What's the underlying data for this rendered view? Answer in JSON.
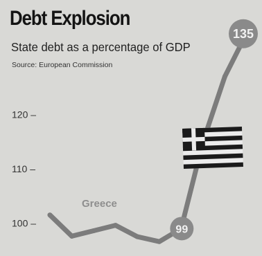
{
  "chart_data": {
    "type": "line",
    "title": "Debt Explosion",
    "subtitle": "State debt as a percentage of GDP",
    "source": "Source: European Commission",
    "xlabel": "",
    "ylabel": "",
    "yticks": [
      "100",
      "110",
      "120"
    ],
    "ylim": [
      96,
      140
    ],
    "series": [
      {
        "name": "Greece",
        "values": [
          101.5,
          97.6,
          98.6,
          99.6,
          97.5,
          96.6,
          99.0,
          115.0,
          127.0,
          135.0
        ]
      }
    ],
    "annotations": [
      {
        "label": "99",
        "value": 99
      },
      {
        "label": "135",
        "value": 135
      }
    ],
    "grid": false
  },
  "colors": {
    "background": "#d9d9d6",
    "line": "#7c7c7c",
    "badge": "#8a8a8a",
    "text": "#1a1a1a"
  },
  "icons": [
    "greece-flag-icon"
  ]
}
